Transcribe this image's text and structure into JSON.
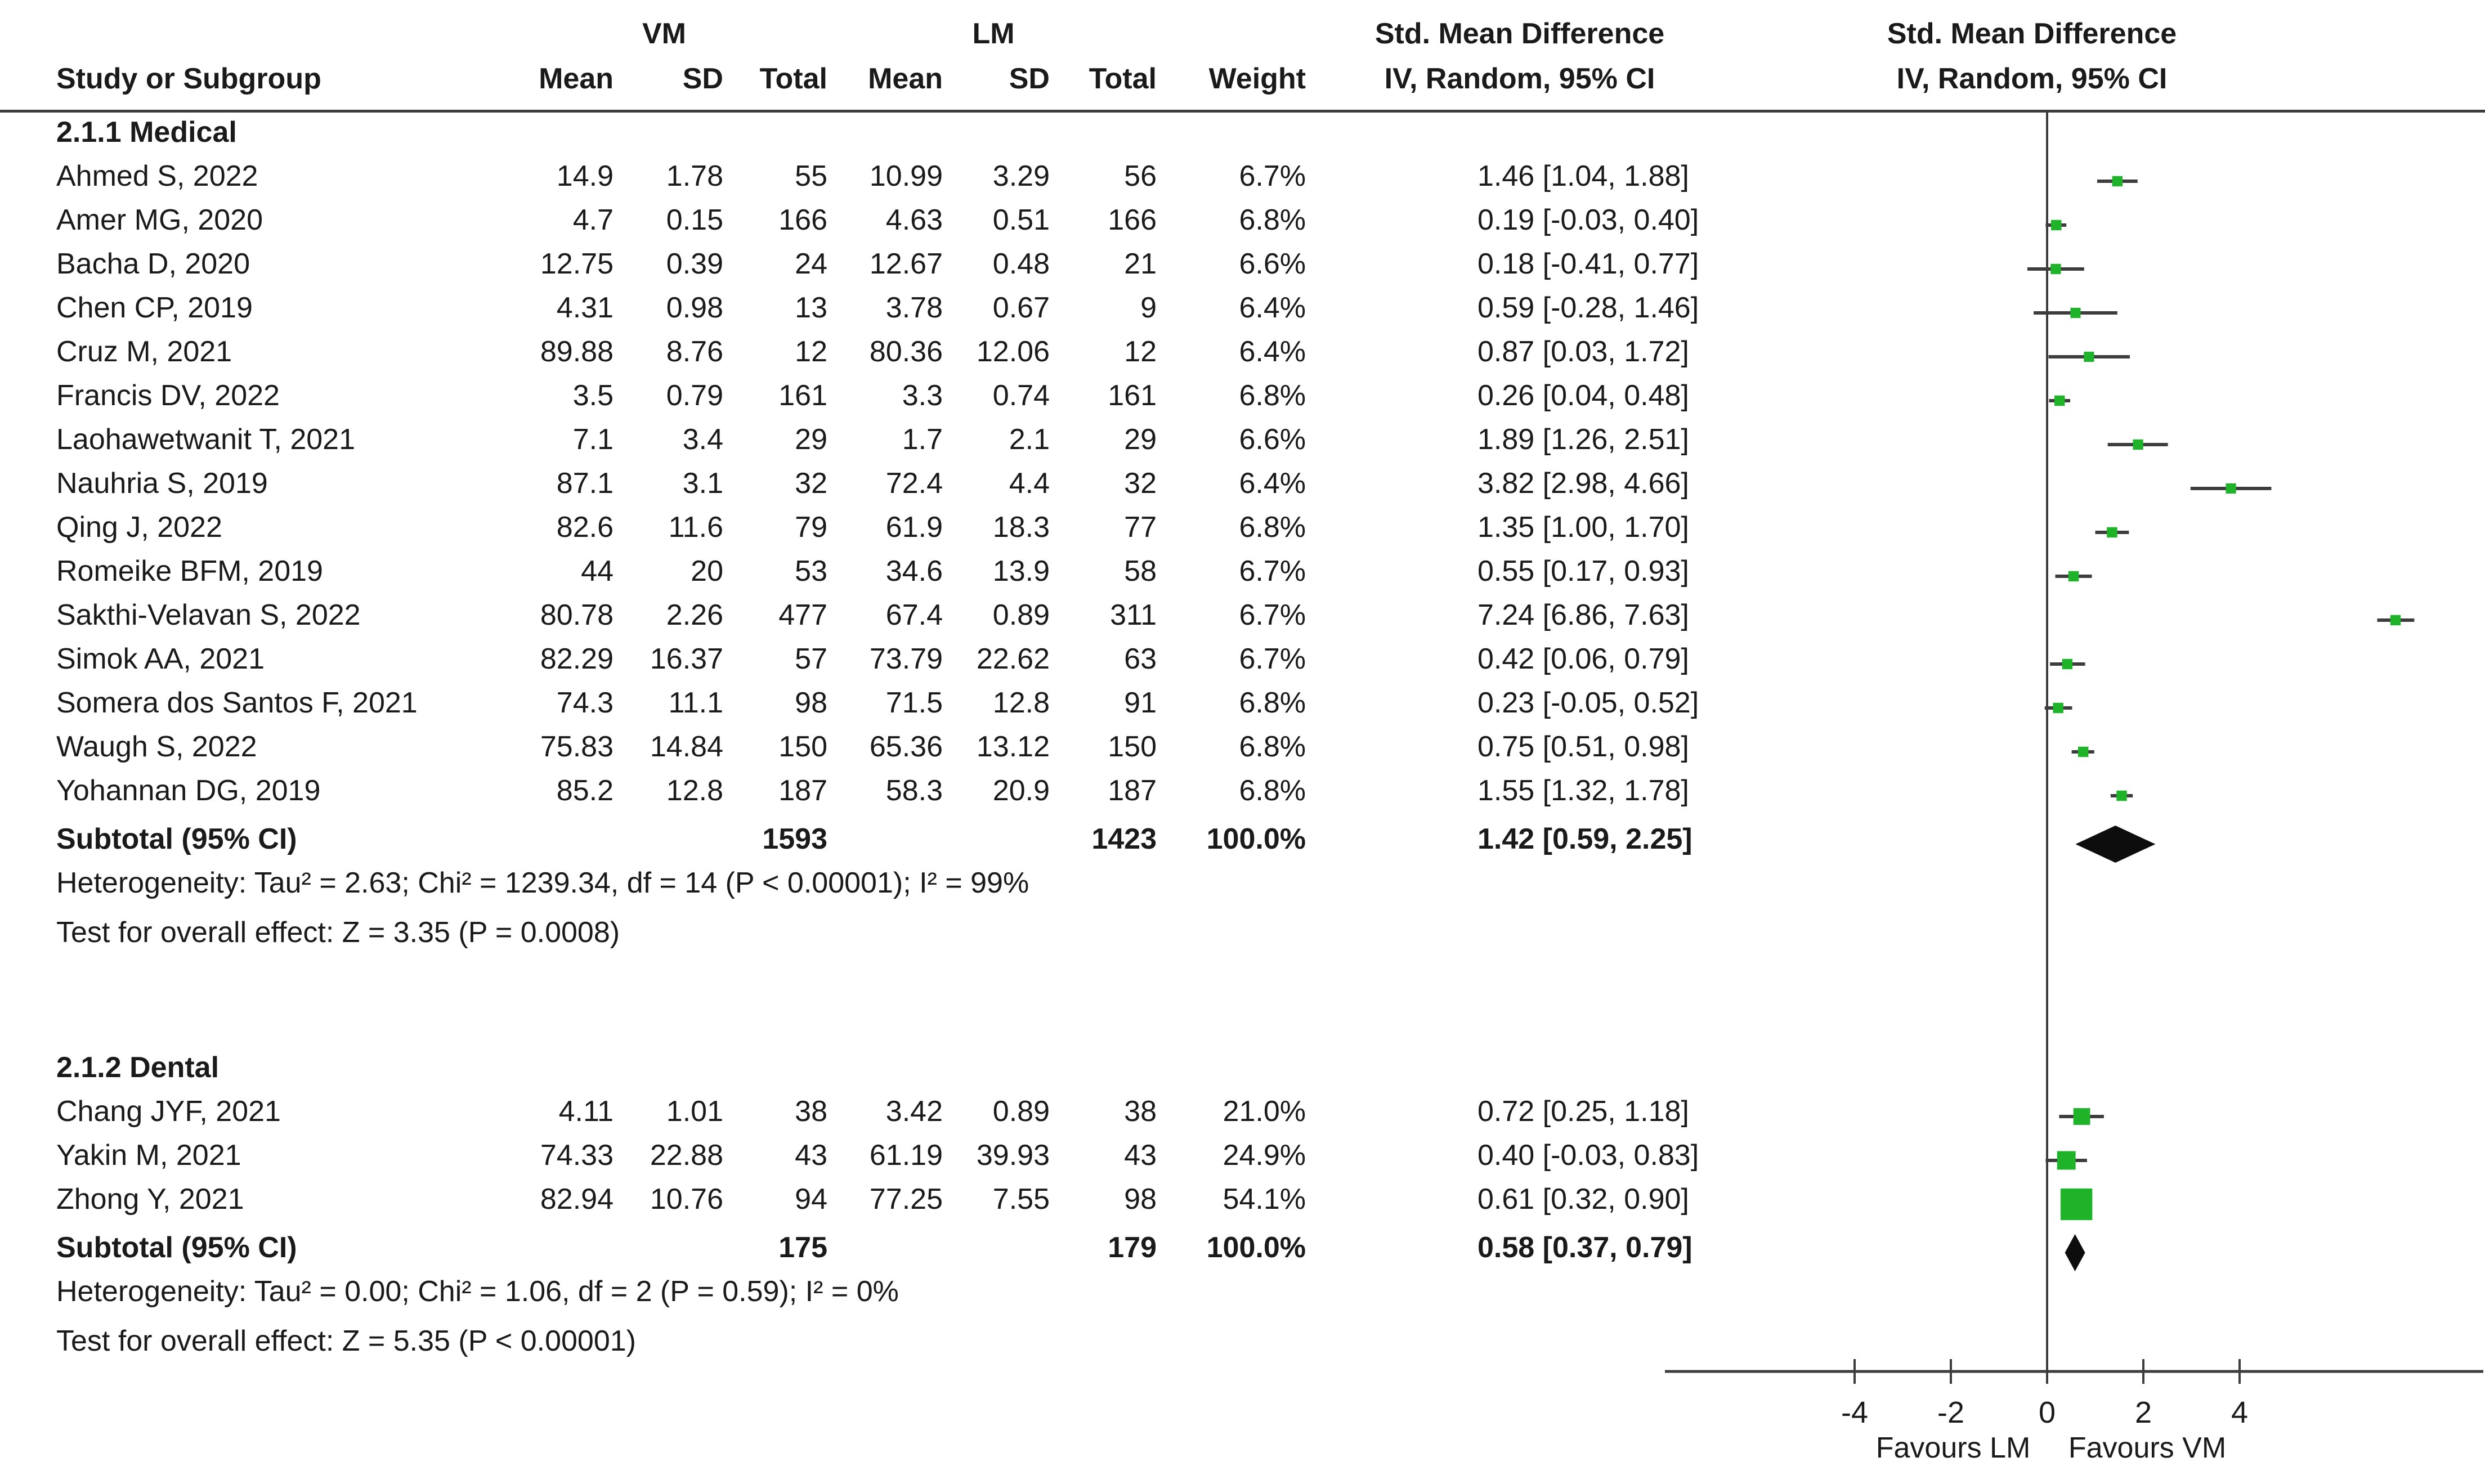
{
  "table": {
    "group_vm": "VM",
    "group_lm": "LM",
    "smd_header": "Std. Mean Difference",
    "iv_header": "IV, Random, 95% CI",
    "col_study": "Study or Subgroup",
    "col_mean": "Mean",
    "col_sd": "SD",
    "col_total": "Total",
    "col_weight": "Weight",
    "subtotal_label": "Subtotal (95% CI)"
  },
  "chart_data": {
    "type": "forest",
    "effect_measure": "Std. Mean Difference",
    "model": "IV, Random, 95% CI",
    "groups": [
      {
        "label": "2.1.1 Medical",
        "studies": [
          {
            "name": "Ahmed S, 2022",
            "vm_mean": "14.9",
            "vm_sd": "1.78",
            "vm_total": "55",
            "lm_mean": "10.99",
            "lm_sd": "3.29",
            "lm_total": "56",
            "weight": "6.7%",
            "weight_pct": 6.7,
            "ci_label": "1.46 [1.04, 1.88]",
            "est": 1.46,
            "lo": 1.04,
            "hi": 1.88
          },
          {
            "name": "Amer MG, 2020",
            "vm_mean": "4.7",
            "vm_sd": "0.15",
            "vm_total": "166",
            "lm_mean": "4.63",
            "lm_sd": "0.51",
            "lm_total": "166",
            "weight": "6.8%",
            "weight_pct": 6.8,
            "ci_label": "0.19 [-0.03, 0.40]",
            "est": 0.19,
            "lo": -0.03,
            "hi": 0.4
          },
          {
            "name": "Bacha D, 2020",
            "vm_mean": "12.75",
            "vm_sd": "0.39",
            "vm_total": "24",
            "lm_mean": "12.67",
            "lm_sd": "0.48",
            "lm_total": "21",
            "weight": "6.6%",
            "weight_pct": 6.6,
            "ci_label": "0.18 [-0.41, 0.77]",
            "est": 0.18,
            "lo": -0.41,
            "hi": 0.77
          },
          {
            "name": "Chen CP, 2019",
            "vm_mean": "4.31",
            "vm_sd": "0.98",
            "vm_total": "13",
            "lm_mean": "3.78",
            "lm_sd": "0.67",
            "lm_total": "9",
            "weight": "6.4%",
            "weight_pct": 6.4,
            "ci_label": "0.59 [-0.28, 1.46]",
            "est": 0.59,
            "lo": -0.28,
            "hi": 1.46
          },
          {
            "name": "Cruz M, 2021",
            "vm_mean": "89.88",
            "vm_sd": "8.76",
            "vm_total": "12",
            "lm_mean": "80.36",
            "lm_sd": "12.06",
            "lm_total": "12",
            "weight": "6.4%",
            "weight_pct": 6.4,
            "ci_label": "0.87 [0.03, 1.72]",
            "est": 0.87,
            "lo": 0.03,
            "hi": 1.72
          },
          {
            "name": "Francis DV, 2022",
            "vm_mean": "3.5",
            "vm_sd": "0.79",
            "vm_total": "161",
            "lm_mean": "3.3",
            "lm_sd": "0.74",
            "lm_total": "161",
            "weight": "6.8%",
            "weight_pct": 6.8,
            "ci_label": "0.26 [0.04, 0.48]",
            "est": 0.26,
            "lo": 0.04,
            "hi": 0.48
          },
          {
            "name": "Laohawetwanit T, 2021",
            "vm_mean": "7.1",
            "vm_sd": "3.4",
            "vm_total": "29",
            "lm_mean": "1.7",
            "lm_sd": "2.1",
            "lm_total": "29",
            "weight": "6.6%",
            "weight_pct": 6.6,
            "ci_label": "1.89 [1.26, 2.51]",
            "est": 1.89,
            "lo": 1.26,
            "hi": 2.51
          },
          {
            "name": "Nauhria S, 2019",
            "vm_mean": "87.1",
            "vm_sd": "3.1",
            "vm_total": "32",
            "lm_mean": "72.4",
            "lm_sd": "4.4",
            "lm_total": "32",
            "weight": "6.4%",
            "weight_pct": 6.4,
            "ci_label": "3.82 [2.98, 4.66]",
            "est": 3.82,
            "lo": 2.98,
            "hi": 4.66
          },
          {
            "name": "Qing J, 2022",
            "vm_mean": "82.6",
            "vm_sd": "11.6",
            "vm_total": "79",
            "lm_mean": "61.9",
            "lm_sd": "18.3",
            "lm_total": "77",
            "weight": "6.8%",
            "weight_pct": 6.8,
            "ci_label": "1.35 [1.00, 1.70]",
            "est": 1.35,
            "lo": 1.0,
            "hi": 1.7
          },
          {
            "name": "Romeike BFM, 2019",
            "vm_mean": "44",
            "vm_sd": "20",
            "vm_total": "53",
            "lm_mean": "34.6",
            "lm_sd": "13.9",
            "lm_total": "58",
            "weight": "6.7%",
            "weight_pct": 6.7,
            "ci_label": "0.55 [0.17, 0.93]",
            "est": 0.55,
            "lo": 0.17,
            "hi": 0.93
          },
          {
            "name": "Sakthi-Velavan S, 2022",
            "vm_mean": "80.78",
            "vm_sd": "2.26",
            "vm_total": "477",
            "lm_mean": "67.4",
            "lm_sd": "0.89",
            "lm_total": "311",
            "weight": "6.7%",
            "weight_pct": 6.7,
            "ci_label": "7.24 [6.86, 7.63]",
            "est": 7.24,
            "lo": 6.86,
            "hi": 7.63
          },
          {
            "name": "Simok AA, 2021",
            "vm_mean": "82.29",
            "vm_sd": "16.37",
            "vm_total": "57",
            "lm_mean": "73.79",
            "lm_sd": "22.62",
            "lm_total": "63",
            "weight": "6.7%",
            "weight_pct": 6.7,
            "ci_label": "0.42 [0.06, 0.79]",
            "est": 0.42,
            "lo": 0.06,
            "hi": 0.79
          },
          {
            "name": "Somera dos Santos F, 2021",
            "vm_mean": "74.3",
            "vm_sd": "11.1",
            "vm_total": "98",
            "lm_mean": "71.5",
            "lm_sd": "12.8",
            "lm_total": "91",
            "weight": "6.8%",
            "weight_pct": 6.8,
            "ci_label": "0.23 [-0.05, 0.52]",
            "est": 0.23,
            "lo": -0.05,
            "hi": 0.52
          },
          {
            "name": "Waugh S, 2022",
            "vm_mean": "75.83",
            "vm_sd": "14.84",
            "vm_total": "150",
            "lm_mean": "65.36",
            "lm_sd": "13.12",
            "lm_total": "150",
            "weight": "6.8%",
            "weight_pct": 6.8,
            "ci_label": "0.75 [0.51, 0.98]",
            "est": 0.75,
            "lo": 0.51,
            "hi": 0.98
          },
          {
            "name": "Yohannan DG, 2019",
            "vm_mean": "85.2",
            "vm_sd": "12.8",
            "vm_total": "187",
            "lm_mean": "58.3",
            "lm_sd": "20.9",
            "lm_total": "187",
            "weight": "6.8%",
            "weight_pct": 6.8,
            "ci_label": "1.55 [1.32, 1.78]",
            "est": 1.55,
            "lo": 1.32,
            "hi": 1.78
          }
        ],
        "subtotal": {
          "vm_total": "1593",
          "lm_total": "1423",
          "weight": "100.0%",
          "ci_label": "1.42 [0.59, 2.25]",
          "est": 1.42,
          "lo": 0.59,
          "hi": 2.25
        },
        "heterogeneity": "Heterogeneity: Tau² = 2.63; Chi² = 1239.34, df = 14 (P < 0.00001); I² = 99%",
        "overall_effect": "Test for overall effect: Z = 3.35 (P = 0.0008)"
      },
      {
        "label": "2.1.2 Dental",
        "studies": [
          {
            "name": "Chang JYF, 2021",
            "vm_mean": "4.11",
            "vm_sd": "1.01",
            "vm_total": "38",
            "lm_mean": "3.42",
            "lm_sd": "0.89",
            "lm_total": "38",
            "weight": "21.0%",
            "weight_pct": 21.0,
            "ci_label": "0.72 [0.25, 1.18]",
            "est": 0.72,
            "lo": 0.25,
            "hi": 1.18
          },
          {
            "name": "Yakin M, 2021",
            "vm_mean": "74.33",
            "vm_sd": "22.88",
            "vm_total": "43",
            "lm_mean": "61.19",
            "lm_sd": "39.93",
            "lm_total": "43",
            "weight": "24.9%",
            "weight_pct": 24.9,
            "ci_label": "0.40 [-0.03, 0.83]",
            "est": 0.4,
            "lo": -0.03,
            "hi": 0.83
          },
          {
            "name": "Zhong Y, 2021",
            "vm_mean": "82.94",
            "vm_sd": "10.76",
            "vm_total": "94",
            "lm_mean": "77.25",
            "lm_sd": "7.55",
            "lm_total": "98",
            "weight": "54.1%",
            "weight_pct": 54.1,
            "ci_label": "0.61 [0.32, 0.90]",
            "est": 0.61,
            "lo": 0.32,
            "hi": 0.9
          }
        ],
        "subtotal": {
          "vm_total": "175",
          "lm_total": "179",
          "weight": "100.0%",
          "ci_label": "0.58 [0.37, 0.79]",
          "est": 0.58,
          "lo": 0.37,
          "hi": 0.79
        },
        "heterogeneity": "Heterogeneity: Tau² = 0.00; Chi² = 1.06, df = 2 (P = 0.59); I² = 0%",
        "overall_effect": "Test for overall effect: Z = 5.35 (P < 0.00001)"
      }
    ],
    "axis": {
      "ticks": [
        -4,
        -2,
        0,
        2,
        4
      ],
      "xlim": [
        -7.9,
        9.0
      ],
      "favours_left": "Favours LM",
      "favours_right": "Favours VM"
    },
    "colors": {
      "marker": "#1fb32a",
      "diamond": "#0d0d0d",
      "line": "#3d3d3d",
      "text": "#1a1a1a"
    }
  }
}
